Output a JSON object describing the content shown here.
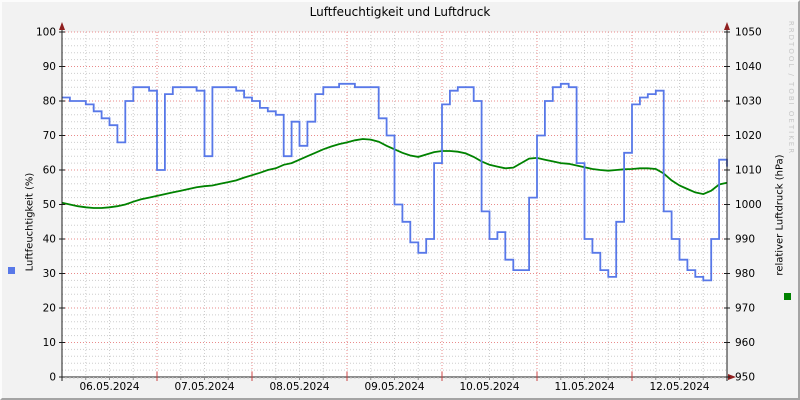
{
  "title": "Luftfeuchtigkeit und Luftdruck",
  "watermark": "RRDTOOL / TOBI OETIKER",
  "colors": {
    "background": "#f2f2f2",
    "plot_background": "#ffffff",
    "humidity_line": "#5878e8",
    "pressure_line": "#008200",
    "grid_major": "#e98b8b",
    "grid_minor": "#cdcdcd",
    "axis": "#1c1c1c",
    "arrow": "#8f1f1f"
  },
  "legend": {
    "humidity_marker_color": "#5878e8",
    "pressure_marker_color": "#008200"
  },
  "chart_data": {
    "type": "line",
    "title": "Luftfeuchtigkeit und Luftdruck",
    "x_axis": {
      "unit": "hours since 06.05.2024 00:00",
      "range_hours": [
        0,
        168
      ],
      "day_labels": [
        "06.05.2024",
        "07.05.2024",
        "08.05.2024",
        "09.05.2024",
        "10.05.2024",
        "11.05.2024",
        "12.05.2024"
      ],
      "minor_grid_hours": 6,
      "major_grid_hours": 24
    },
    "left_axis": {
      "label": "Luftfeuchtigkeit (%)",
      "min": 0,
      "max": 100,
      "major_step": 10,
      "minor_step": 2,
      "tick_labels": [
        "0",
        "10",
        "20",
        "30",
        "40",
        "50",
        "60",
        "70",
        "80",
        "90",
        "100"
      ]
    },
    "right_axis": {
      "label": "relativer Luftdruck (hPa)",
      "min": 950,
      "max": 1050,
      "major_step": 10,
      "minor_step": 2,
      "tick_labels": [
        "950",
        "960",
        "970",
        "980",
        "990",
        "1000",
        "1010",
        "1020",
        "1030",
        "1040",
        "1050"
      ]
    },
    "series": [
      {
        "name": "Luftfeuchtigkeit (%)",
        "axis": "left",
        "color": "#5878e8",
        "style": "step",
        "x_hours": [
          0,
          2,
          4,
          6,
          8,
          10,
          12,
          14,
          16,
          18,
          20,
          22,
          24,
          26,
          28,
          30,
          32,
          34,
          36,
          38,
          40,
          42,
          44,
          46,
          48,
          50,
          52,
          54,
          56,
          58,
          60,
          62,
          64,
          66,
          68,
          70,
          72,
          74,
          76,
          78,
          80,
          82,
          84,
          86,
          88,
          90,
          92,
          94,
          96,
          98,
          100,
          102,
          104,
          106,
          108,
          110,
          112,
          114,
          116,
          118,
          120,
          122,
          124,
          126,
          128,
          130,
          132,
          134,
          136,
          138,
          140,
          142,
          144,
          146,
          148,
          150,
          152,
          154,
          156,
          158,
          160,
          162,
          164,
          166,
          168
        ],
        "values": [
          81,
          80,
          80,
          79,
          77,
          75,
          73,
          68,
          80,
          84,
          84,
          83,
          60,
          82,
          84,
          84,
          84,
          83,
          64,
          84,
          84,
          84,
          83,
          81,
          80,
          78,
          77,
          76,
          64,
          74,
          67,
          74,
          82,
          84,
          84,
          85,
          85,
          84,
          84,
          84,
          75,
          70,
          50,
          45,
          39,
          36,
          40,
          62,
          79,
          83,
          84,
          84,
          80,
          48,
          40,
          42,
          34,
          31,
          31,
          52,
          70,
          80,
          84,
          85,
          84,
          62,
          40,
          36,
          31,
          29,
          45,
          65,
          79,
          81,
          82,
          83,
          48,
          40,
          34,
          31,
          29,
          28,
          40,
          63,
          61
        ]
      },
      {
        "name": "relativer Luftdruck (hPa)",
        "axis": "right",
        "color": "#008200",
        "style": "line",
        "x_hours": [
          0,
          2,
          4,
          6,
          8,
          10,
          12,
          14,
          16,
          18,
          20,
          22,
          24,
          26,
          28,
          30,
          32,
          34,
          36,
          38,
          40,
          42,
          44,
          46,
          48,
          50,
          52,
          54,
          56,
          58,
          60,
          62,
          64,
          66,
          68,
          70,
          72,
          74,
          76,
          78,
          80,
          82,
          84,
          86,
          88,
          90,
          92,
          94,
          96,
          98,
          100,
          102,
          104,
          106,
          108,
          110,
          112,
          114,
          116,
          118,
          120,
          122,
          124,
          126,
          128,
          130,
          132,
          134,
          136,
          138,
          140,
          142,
          144,
          146,
          148,
          150,
          152,
          154,
          156,
          158,
          160,
          162,
          164,
          166,
          168
        ],
        "values": [
          1000.5,
          1000.0,
          999.5,
          999.2,
          999.0,
          999.0,
          999.2,
          999.5,
          1000.0,
          1000.8,
          1001.5,
          1002.0,
          1002.5,
          1003.0,
          1003.5,
          1004.0,
          1004.5,
          1005.0,
          1005.3,
          1005.5,
          1006.0,
          1006.5,
          1007.0,
          1007.8,
          1008.5,
          1009.2,
          1010.0,
          1010.5,
          1011.5,
          1012.0,
          1013.0,
          1014.0,
          1015.0,
          1016.0,
          1016.8,
          1017.5,
          1018.0,
          1018.6,
          1019.0,
          1018.8,
          1018.2,
          1017.0,
          1016.0,
          1015.0,
          1014.2,
          1013.8,
          1014.5,
          1015.2,
          1015.5,
          1015.5,
          1015.3,
          1014.8,
          1013.8,
          1012.5,
          1011.5,
          1011.0,
          1010.5,
          1010.7,
          1012.0,
          1013.3,
          1013.5,
          1013.0,
          1012.5,
          1012.0,
          1011.8,
          1011.3,
          1010.8,
          1010.3,
          1010.0,
          1009.8,
          1010.0,
          1010.2,
          1010.3,
          1010.5,
          1010.5,
          1010.3,
          1009.0,
          1007.0,
          1005.5,
          1004.5,
          1003.5,
          1003.0,
          1004.0,
          1005.8,
          1006.3
        ]
      }
    ],
    "grid": {
      "horizontal_minor_step": 2,
      "horizontal_major_step": 10,
      "vertical_minor_hours": 6,
      "vertical_major_hours": 24
    }
  }
}
